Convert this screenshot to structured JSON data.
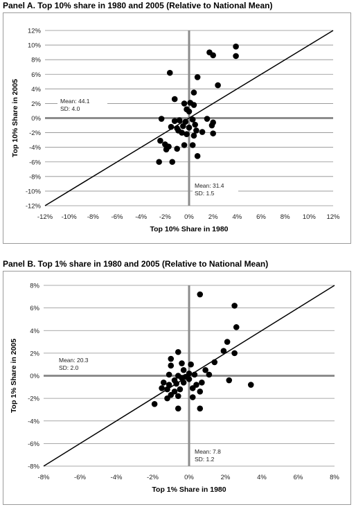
{
  "chart_data": [
    {
      "type": "scatter",
      "title": "Panel A. Top 10% share in 1980 and 2005 (Relative to National Mean)",
      "xlabel": "Top 10% Share in 1980",
      "ylabel": "Top 10% Share in 2005",
      "xlim": [
        -12,
        12
      ],
      "ylim": [
        -12,
        12
      ],
      "xticks": [
        -12,
        -10,
        -8,
        -6,
        -4,
        -2,
        0,
        2,
        4,
        6,
        8,
        10,
        12
      ],
      "yticks": [
        -12,
        -10,
        -8,
        -6,
        -4,
        -2,
        0,
        2,
        4,
        6,
        8,
        10,
        12
      ],
      "x_tick_labels": [
        "-12%",
        "-10%",
        "-8%",
        "-6%",
        "-4%",
        "-2%",
        "0%",
        "2%",
        "4%",
        "6%",
        "8%",
        "10%",
        "12%"
      ],
      "y_tick_labels": [
        "-12%",
        "-10%",
        "-8%",
        "-6%",
        "-4%",
        "-2%",
        "0%",
        "2%",
        "4%",
        "6%",
        "8%",
        "10%",
        "12%"
      ],
      "grid": "horizontal",
      "reference_line": "45-degree",
      "annotation_y": {
        "mean": "Mean: 44.1",
        "sd": "SD: 4.0"
      },
      "annotation_x": {
        "mean": "Mean: 31.4",
        "sd": "SD: 1.5"
      },
      "points": [
        [
          -1.6,
          6.2
        ],
        [
          1.7,
          9.0
        ],
        [
          2.0,
          8.6
        ],
        [
          3.9,
          9.8
        ],
        [
          3.9,
          8.5
        ],
        [
          0.7,
          5.6
        ],
        [
          2.4,
          4.5
        ],
        [
          0.4,
          3.5
        ],
        [
          -1.2,
          2.6
        ],
        [
          -0.4,
          2.0
        ],
        [
          0.1,
          2.1
        ],
        [
          0.4,
          1.8
        ],
        [
          -0.2,
          1.2
        ],
        [
          0.0,
          0.9
        ],
        [
          -2.3,
          -0.1
        ],
        [
          -1.2,
          -0.4
        ],
        [
          -0.8,
          -0.3
        ],
        [
          0.3,
          -0.2
        ],
        [
          1.5,
          -0.1
        ],
        [
          2.0,
          -0.6
        ],
        [
          -1.5,
          -1.2
        ],
        [
          -1.0,
          -1.4
        ],
        [
          -0.5,
          -1.1
        ],
        [
          0.0,
          -1.3
        ],
        [
          0.6,
          -1.7
        ],
        [
          1.1,
          -1.9
        ],
        [
          2.0,
          -2.1
        ],
        [
          -0.6,
          -2.0
        ],
        [
          -0.2,
          -2.2
        ],
        [
          0.4,
          -2.4
        ],
        [
          -2.4,
          -3.1
        ],
        [
          -2.0,
          -3.6
        ],
        [
          -1.7,
          -3.9
        ],
        [
          -1.9,
          -4.3
        ],
        [
          -1.0,
          -4.2
        ],
        [
          -0.4,
          -3.7
        ],
        [
          0.3,
          -3.7
        ],
        [
          0.7,
          -5.2
        ],
        [
          -2.5,
          -6.0
        ],
        [
          -1.4,
          -6.0
        ],
        [
          -0.9,
          -1.7
        ],
        [
          0.5,
          -0.9
        ],
        [
          -0.3,
          -0.5
        ],
        [
          1.9,
          -1.0
        ]
      ]
    },
    {
      "type": "scatter",
      "title": "Panel B. Top 1% share in 1980 and 2005 (Relative to National Mean)",
      "xlabel": "Top 1% Share in 1980",
      "ylabel": "Top 1% Share in 2005",
      "xlim": [
        -8,
        8
      ],
      "ylim": [
        -8,
        8
      ],
      "xticks": [
        -8,
        -6,
        -4,
        -2,
        0,
        2,
        4,
        6,
        8
      ],
      "yticks": [
        -8,
        -6,
        -4,
        -2,
        0,
        2,
        4,
        6,
        8
      ],
      "x_tick_labels": [
        "-8%",
        "-6%",
        "-4%",
        "-2%",
        "0%",
        "2%",
        "4%",
        "6%",
        "8%"
      ],
      "y_tick_labels": [
        "-8%",
        "-6%",
        "-4%",
        "-2%",
        "0%",
        "2%",
        "4%",
        "6%",
        "8%"
      ],
      "grid": "horizontal",
      "reference_line": "45-degree",
      "annotation_y": {
        "mean": "Mean: 20.3",
        "sd": "SD: 2.0"
      },
      "annotation_x": {
        "mean": "Mean: 7.8",
        "sd": "SD: 1.2"
      },
      "points": [
        [
          0.6,
          7.2
        ],
        [
          2.5,
          6.2
        ],
        [
          2.6,
          4.3
        ],
        [
          2.1,
          3.0
        ],
        [
          1.9,
          2.2
        ],
        [
          2.5,
          2.0
        ],
        [
          1.4,
          1.2
        ],
        [
          -0.6,
          2.1
        ],
        [
          -1.0,
          1.5
        ],
        [
          -1.0,
          0.9
        ],
        [
          -0.4,
          1.1
        ],
        [
          0.1,
          1.0
        ],
        [
          -0.3,
          0.5
        ],
        [
          0.9,
          0.5
        ],
        [
          1.1,
          0.1
        ],
        [
          0.0,
          0.2
        ],
        [
          -1.1,
          0.1
        ],
        [
          -0.6,
          0.0
        ],
        [
          -0.2,
          -0.1
        ],
        [
          0.3,
          0.1
        ],
        [
          -1.4,
          -0.6
        ],
        [
          -1.1,
          -0.8
        ],
        [
          -0.7,
          -0.7
        ],
        [
          -0.3,
          -0.6
        ],
        [
          0.4,
          -0.8
        ],
        [
          0.7,
          -0.6
        ],
        [
          -1.2,
          -1.2
        ],
        [
          -0.8,
          -1.4
        ],
        [
          -0.5,
          -1.2
        ],
        [
          0.2,
          -1.1
        ],
        [
          0.6,
          -1.4
        ],
        [
          -1.2,
          -2.0
        ],
        [
          -1.0,
          -1.7
        ],
        [
          -0.6,
          -1.8
        ],
        [
          0.2,
          -1.9
        ],
        [
          -0.6,
          -2.9
        ],
        [
          0.6,
          -2.9
        ],
        [
          -1.9,
          -2.5
        ],
        [
          -1.5,
          -1.1
        ],
        [
          2.2,
          -0.4
        ],
        [
          3.4,
          -0.8
        ],
        [
          -0.8,
          -0.4
        ],
        [
          -0.4,
          -0.2
        ],
        [
          0.0,
          -0.3
        ]
      ]
    }
  ]
}
